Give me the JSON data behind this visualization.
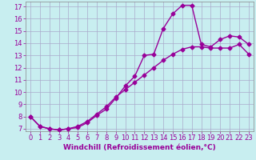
{
  "xlabel": "Windchill (Refroidissement éolien,°C)",
  "bg_color": "#c8eef0",
  "line_color": "#990099",
  "grid_color": "#aaaacc",
  "xlim": [
    -0.5,
    23.5
  ],
  "ylim": [
    6.8,
    17.4
  ],
  "xticks": [
    0,
    1,
    2,
    3,
    4,
    5,
    6,
    7,
    8,
    9,
    10,
    11,
    12,
    13,
    14,
    15,
    16,
    17,
    18,
    19,
    20,
    21,
    22,
    23
  ],
  "yticks": [
    7,
    8,
    9,
    10,
    11,
    12,
    13,
    14,
    15,
    16,
    17
  ],
  "curve1_x": [
    0,
    1,
    2,
    3,
    4,
    5,
    6,
    7,
    8,
    9,
    10,
    11,
    12,
    13,
    14,
    15,
    16,
    17,
    18,
    19,
    20,
    21,
    22,
    23
  ],
  "curve1_y": [
    8.0,
    7.2,
    7.0,
    6.9,
    7.0,
    7.1,
    7.5,
    8.1,
    8.6,
    9.5,
    10.5,
    11.3,
    13.0,
    13.1,
    15.2,
    16.4,
    17.1,
    17.1,
    13.9,
    13.7,
    14.3,
    14.6,
    14.5,
    13.9
  ],
  "curve2_x": [
    0,
    1,
    2,
    3,
    4,
    5,
    6,
    7,
    8,
    9,
    10,
    11,
    12,
    13,
    14,
    15,
    16,
    17,
    18,
    19,
    20,
    21,
    22,
    23
  ],
  "curve2_y": [
    8.0,
    7.2,
    7.0,
    6.9,
    7.0,
    7.2,
    7.6,
    8.2,
    8.8,
    9.6,
    10.2,
    10.8,
    11.4,
    12.0,
    12.6,
    13.1,
    13.5,
    13.7,
    13.7,
    13.6,
    13.6,
    13.6,
    13.9,
    13.1
  ],
  "marker": "D",
  "marker_size": 2.5,
  "line_width": 1.0,
  "xlabel_fontsize": 6.5,
  "tick_fontsize": 6.0,
  "xlabel_color": "#990099",
  "tick_color": "#990099",
  "spine_color": "#888888"
}
